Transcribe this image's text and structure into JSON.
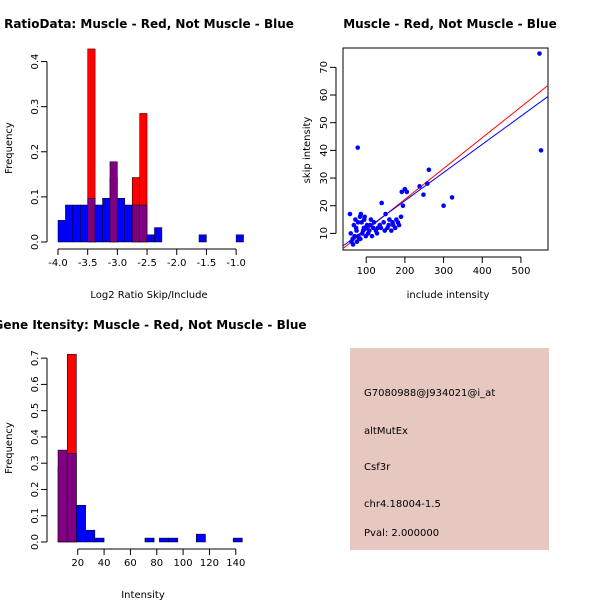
{
  "chart_data": [
    {
      "type": "histogram",
      "title": "RatioData: Muscle - Red, Not Muscle - Blue",
      "xlabel": "Log2 Ratio Skip/Include",
      "ylabel": "Frequency",
      "xlim": [
        -4.0,
        -0.8
      ],
      "ylim": [
        0,
        0.45
      ],
      "xticks": [
        -4.0,
        -3.5,
        -3.0,
        -2.5,
        -2.0,
        -1.5,
        -1.0
      ],
      "xtick_labels": [
        "-4.0",
        "-3.5",
        "-3.0",
        "-2.5",
        "-2.0",
        "-1.5",
        "-1.0"
      ],
      "yticks": [
        0.0,
        0.1,
        0.2,
        0.3,
        0.4
      ],
      "ytick_labels": [
        "0.0",
        "0.1",
        "0.2",
        "0.3",
        "0.4"
      ],
      "series": [
        {
          "name": "Not Muscle",
          "color": "#0000ff",
          "bins": [
            [
              -4.0,
              -3.875,
              0.048
            ],
            [
              -3.875,
              -3.75,
              0.082
            ],
            [
              -3.75,
              -3.625,
              0.082
            ],
            [
              -3.625,
              -3.5,
              0.082
            ],
            [
              -3.5,
              -3.375,
              0.097
            ],
            [
              -3.375,
              -3.25,
              0.082
            ],
            [
              -3.25,
              -3.125,
              0.097
            ],
            [
              -3.125,
              -3.0,
              0.178
            ],
            [
              -3.0,
              -2.875,
              0.097
            ],
            [
              -2.875,
              -2.75,
              0.082
            ],
            [
              -2.75,
              -2.625,
              0.082
            ],
            [
              -2.625,
              -2.5,
              0.082
            ],
            [
              -2.5,
              -2.375,
              0.016
            ],
            [
              -2.375,
              -2.25,
              0.032
            ],
            [
              -1.625,
              -1.5,
              0.016
            ],
            [
              -1.0,
              -0.875,
              0.016
            ]
          ]
        },
        {
          "name": "Muscle",
          "color": "#ff0000",
          "bins": [
            [
              -3.5,
              -3.375,
              0.428
            ],
            [
              -3.125,
              -3.0,
              0.143
            ],
            [
              -2.75,
              -2.625,
              0.143
            ],
            [
              -2.625,
              -2.5,
              0.285
            ]
          ]
        }
      ]
    },
    {
      "type": "scatter",
      "title": "Muscle - Red, Not Muscle - Blue",
      "xlabel": "include intensity",
      "ylabel": "skip intensity",
      "xlim": [
        40,
        570
      ],
      "ylim": [
        4,
        77
      ],
      "xticks": [
        100,
        200,
        300,
        400,
        500
      ],
      "xtick_labels": [
        "100",
        "200",
        "300",
        "400",
        "500"
      ],
      "yticks": [
        10,
        20,
        30,
        40,
        50,
        60,
        70
      ],
      "ytick_labels": [
        "10",
        "20",
        "30",
        "40",
        "50",
        "60",
        "70"
      ],
      "points": [
        [
          548,
          75
        ],
        [
          552,
          40
        ],
        [
          78,
          41
        ],
        [
          300,
          20
        ],
        [
          322,
          23
        ],
        [
          262,
          33
        ],
        [
          258,
          28
        ],
        [
          238,
          27
        ],
        [
          248,
          24
        ],
        [
          200,
          26
        ],
        [
          192,
          25
        ],
        [
          205,
          25
        ],
        [
          195,
          20
        ],
        [
          190,
          16
        ],
        [
          140,
          21
        ],
        [
          150,
          17
        ],
        [
          182,
          14
        ],
        [
          170,
          13
        ],
        [
          160,
          15
        ],
        [
          175,
          12
        ],
        [
          130,
          12
        ],
        [
          120,
          14
        ],
        [
          110,
          13
        ],
        [
          100,
          12
        ],
        [
          95,
          15
        ],
        [
          90,
          10
        ],
        [
          85,
          8
        ],
        [
          80,
          9
        ],
        [
          75,
          11
        ],
        [
          70,
          9
        ],
        [
          65,
          8
        ],
        [
          60,
          10
        ],
        [
          58,
          17
        ],
        [
          68,
          13
        ],
        [
          72,
          15
        ],
        [
          88,
          14
        ],
        [
          92,
          11
        ],
        [
          105,
          10
        ],
        [
          115,
          9
        ],
        [
          125,
          11
        ],
        [
          135,
          13
        ],
        [
          145,
          14
        ],
        [
          155,
          12
        ],
        [
          165,
          11
        ],
        [
          62,
          7
        ],
        [
          66,
          6
        ],
        [
          76,
          7
        ],
        [
          82,
          8
        ],
        [
          86,
          17
        ],
        [
          96,
          16
        ],
        [
          102,
          13
        ],
        [
          112,
          15
        ],
        [
          118,
          12
        ],
        [
          128,
          10
        ],
        [
          138,
          12
        ],
        [
          148,
          11
        ],
        [
          158,
          13
        ],
        [
          168,
          14
        ],
        [
          178,
          15
        ],
        [
          185,
          13
        ],
        [
          74,
          12
        ],
        [
          79,
          14
        ],
        [
          84,
          16
        ],
        [
          94,
          12
        ],
        [
          99,
          9
        ],
        [
          108,
          11
        ]
      ],
      "regression_lines": [
        {
          "name": "Muscle",
          "color": "#ff0000",
          "endpoints": [
            [
              40,
              4.5
            ],
            [
              570,
              63.5
            ]
          ]
        },
        {
          "name": "Not Muscle",
          "color": "#0000ff",
          "endpoints": [
            [
              40,
              5.5
            ],
            [
              570,
              59.5
            ]
          ]
        }
      ]
    },
    {
      "type": "histogram",
      "title": "Gene Itensity: Muscle - Red, Not Muscle - Blue",
      "xlabel": "Intensity",
      "ylabel": "Frequency",
      "xlim": [
        5,
        147
      ],
      "ylim": [
        0,
        0.75
      ],
      "xticks": [
        20,
        40,
        60,
        80,
        100,
        120,
        140
      ],
      "xtick_labels": [
        "20",
        "40",
        "60",
        "80",
        "100",
        "120",
        "140"
      ],
      "yticks": [
        0.0,
        0.1,
        0.2,
        0.3,
        0.4,
        0.5,
        0.6,
        0.7
      ],
      "ytick_labels": [
        "0.0",
        "0.1",
        "0.2",
        "0.3",
        "0.4",
        "0.5",
        "0.6",
        "0.7"
      ],
      "series": [
        {
          "name": "Not Muscle",
          "color": "#0000ff",
          "bins": [
            [
              5,
              12,
              0.35
            ],
            [
              12,
              19,
              0.338
            ],
            [
              19,
              26,
              0.14
            ],
            [
              26,
              33,
              0.045
            ],
            [
              33,
              40,
              0.015
            ],
            [
              71,
              78,
              0.015
            ],
            [
              82,
              89,
              0.015
            ],
            [
              89,
              96,
              0.015
            ],
            [
              110,
              117,
              0.03
            ],
            [
              138,
              145,
              0.015
            ]
          ]
        },
        {
          "name": "Muscle",
          "color": "#ff0000",
          "bins": [
            [
              5,
              12,
              0.285
            ],
            [
              12,
              19,
              0.715
            ]
          ]
        }
      ]
    }
  ],
  "info_panel": {
    "probe_id": "G7080988@J934021@i_at",
    "event_type": "altMutEx",
    "gene": "Csf3r",
    "location": "chr4.18004-1.5",
    "pval": "Pval: 2.000000",
    "background": "#e6c8c0",
    "pval_color": "#8b0000"
  },
  "colors": {
    "muscle": "#ff0000",
    "not_muscle": "#0000ff",
    "overlap": "#7f0080"
  }
}
